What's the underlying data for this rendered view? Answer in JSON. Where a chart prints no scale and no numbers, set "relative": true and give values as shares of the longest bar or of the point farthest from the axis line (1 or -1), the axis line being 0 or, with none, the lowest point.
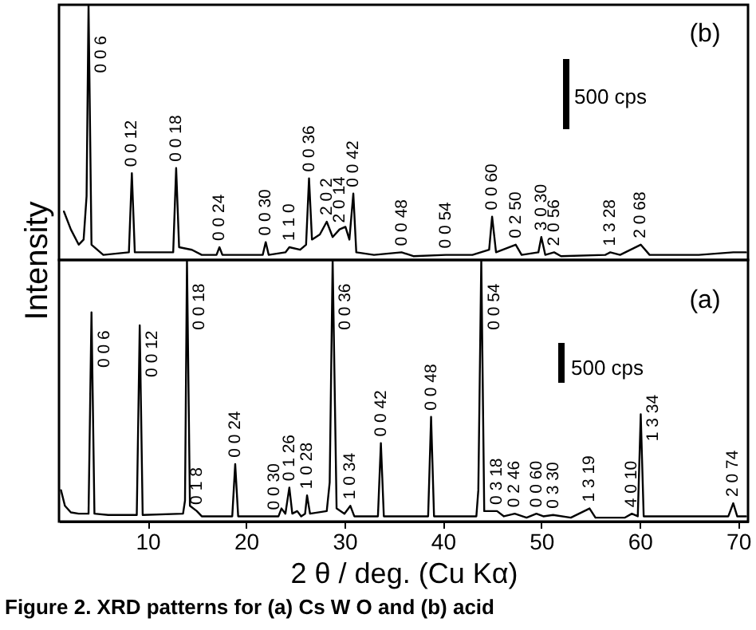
{
  "chart_data": [
    {
      "type": "line",
      "relative": true,
      "ylabel": "Intensity",
      "xlim": [
        1,
        71
      ],
      "tick_labels": false,
      "x": [
        1.5,
        2.2,
        3.0,
        3.5,
        3.8,
        4.0,
        4.3,
        5.5,
        8.1,
        8.4,
        8.7,
        12.6,
        12.9,
        13.2,
        14.5,
        15.5,
        17.0,
        17.3,
        17.6,
        21.7,
        22.0,
        22.3,
        24.0,
        24.4,
        25.5,
        26.1,
        26.4,
        26.7,
        27.5,
        28.2,
        28.8,
        29.5,
        30.1,
        30.5,
        30.9,
        31.2,
        33,
        35.8,
        37,
        40.3,
        43,
        44.7,
        45.0,
        45.4,
        47.4,
        48,
        49.7,
        50.0,
        50.4,
        51.3,
        52,
        56.5,
        57.0,
        58,
        60.1,
        61,
        66,
        69.5,
        70.8
      ],
      "series": [
        {
          "color": "#000000",
          "values": [
            0.19,
            0.12,
            0.06,
            0.08,
            0.25,
            1.0,
            0.06,
            0.02,
            0.03,
            0.34,
            0.03,
            0.03,
            0.36,
            0.05,
            0.04,
            0.02,
            0.02,
            0.05,
            0.02,
            0.02,
            0.07,
            0.02,
            0.03,
            0.05,
            0.04,
            0.06,
            0.32,
            0.08,
            0.1,
            0.15,
            0.09,
            0.12,
            0.13,
            0.08,
            0.26,
            0.03,
            0.02,
            0.03,
            0.015,
            0.02,
            0.02,
            0.04,
            0.17,
            0.03,
            0.06,
            0.02,
            0.03,
            0.09,
            0.02,
            0.03,
            0.015,
            0.02,
            0.03,
            0.02,
            0.06,
            0.02,
            0.02,
            0.03,
            0.03
          ]
        }
      ],
      "annotations": [
        "(b)",
        "500 cps",
        {
          "text": "0 0 6",
          "x": 4.0,
          "y": 1.0
        },
        {
          "text": "0 0 12",
          "x": 8.4,
          "y": 0.34
        },
        {
          "text": "0 0 18",
          "x": 12.9,
          "y": 0.36
        },
        {
          "text": "0 0 24",
          "x": 17.3,
          "y": 0.05
        },
        {
          "text": "0 0 30",
          "x": 22.0,
          "y": 0.07
        },
        {
          "text": "1 1 0",
          "x": 24.4,
          "y": 0.05
        },
        {
          "text": "0 0 36",
          "x": 26.4,
          "y": 0.32
        },
        {
          "text": "2 0 2",
          "x": 28.2,
          "y": 0.15
        },
        {
          "text": "2 0 14",
          "x": 29.5,
          "y": 0.12
        },
        {
          "text": "0 0 42",
          "x": 30.9,
          "y": 0.26
        },
        {
          "text": "0 0 48",
          "x": 35.8,
          "y": 0.03
        },
        {
          "text": "0 0 54",
          "x": 40.3,
          "y": 0.02
        },
        {
          "text": "0 0 60",
          "x": 45.0,
          "y": 0.17
        },
        {
          "text": "0 2 50",
          "x": 47.4,
          "y": 0.06
        },
        {
          "text": "3 0 30",
          "x": 50.0,
          "y": 0.09
        },
        {
          "text": "2 0 56",
          "x": 51.3,
          "y": 0.03
        },
        {
          "text": "1 3 28",
          "x": 57.0,
          "y": 0.03
        },
        {
          "text": "2 0 68",
          "x": 60.1,
          "y": 0.06
        }
      ]
    },
    {
      "type": "line",
      "relative": true,
      "xlabel": "2 θ / deg. (Cu Kα)",
      "xlim": [
        1,
        71
      ],
      "xticks": [
        10,
        20,
        30,
        40,
        50,
        60,
        70
      ],
      "tick_labels": "x",
      "x": [
        1.2,
        1.6,
        2.2,
        3,
        4.0,
        4.3,
        4.6,
        6,
        8.9,
        9.2,
        9.5,
        13.6,
        13.8,
        14.0,
        14.3,
        15.0,
        15.5,
        18.6,
        18.9,
        19.2,
        22.9,
        23.3,
        23.6,
        24.0,
        24.4,
        24.7,
        25.2,
        25.6,
        26.0,
        26.2,
        26.5,
        28.2,
        28.5,
        28.8,
        29.2,
        30.0,
        30.6,
        31.0,
        33.4,
        33.7,
        34.0,
        38.5,
        38.8,
        39.1,
        43.4,
        43.6,
        43.9,
        44.2,
        45.5,
        46.2,
        47.3,
        48.5,
        49.5,
        50.2,
        51.2,
        53,
        54.9,
        55.5,
        58.5,
        59.2,
        59.8,
        60.1,
        60.4,
        65.7,
        69.0,
        69.5,
        69.9,
        70.8
      ],
      "series": [
        {
          "color": "#000000",
          "values": [
            0.12,
            0.06,
            0.035,
            0.03,
            0.03,
            0.8,
            0.03,
            0.025,
            0.025,
            0.75,
            0.025,
            0.03,
            0.08,
            1.0,
            0.06,
            0.04,
            0.02,
            0.02,
            0.22,
            0.02,
            0.02,
            0.02,
            0.05,
            0.03,
            0.13,
            0.03,
            0.04,
            0.02,
            0.03,
            0.1,
            0.03,
            0.04,
            0.15,
            1.0,
            0.05,
            0.03,
            0.06,
            0.02,
            0.02,
            0.3,
            0.02,
            0.02,
            0.4,
            0.02,
            0.02,
            0.12,
            1.0,
            0.04,
            0.04,
            0.02,
            0.03,
            0.015,
            0.03,
            0.02,
            0.025,
            0.015,
            0.05,
            0.015,
            0.015,
            0.03,
            0.02,
            0.41,
            0.02,
            0.02,
            0.02,
            0.07,
            0.02,
            0.02
          ]
        }
      ],
      "annotations": [
        "(a)",
        "500 cps",
        "Figure 2. XRD patterns for (a) Cs W O and (b) acid",
        {
          "text": "0 0 6",
          "x": 4.3,
          "y": 0.8
        },
        {
          "text": "0 0 12",
          "x": 9.2,
          "y": 0.75
        },
        {
          "text": "0 0 18",
          "x": 14.0,
          "y": 1.0
        },
        {
          "text": "0 1 8",
          "x": 15.0,
          "y": 0.04
        },
        {
          "text": "0 0 24",
          "x": 18.9,
          "y": 0.22
        },
        {
          "text": "0 0 30",
          "x": 22.9,
          "y": 0.02
        },
        {
          "text": "0 1 26",
          "x": 24.4,
          "y": 0.13
        },
        {
          "text": "1 0 28",
          "x": 26.2,
          "y": 0.1
        },
        {
          "text": "0 0 36",
          "x": 28.8,
          "y": 1.0
        },
        {
          "text": "1 0 34",
          "x": 30.6,
          "y": 0.06
        },
        {
          "text": "0 0 42",
          "x": 33.7,
          "y": 0.3
        },
        {
          "text": "0 0 48",
          "x": 38.8,
          "y": 0.4
        },
        {
          "text": "0 0 54",
          "x": 43.9,
          "y": 1.0
        },
        {
          "text": "0 3 18",
          "x": 45.5,
          "y": 0.04
        },
        {
          "text": "0 2 46",
          "x": 47.3,
          "y": 0.03
        },
        {
          "text": "0 0 60",
          "x": 49.5,
          "y": 0.03
        },
        {
          "text": "0 3 30",
          "x": 51.2,
          "y": 0.025
        },
        {
          "text": "1 3 19",
          "x": 54.9,
          "y": 0.05
        },
        {
          "text": "4 0 10",
          "x": 59.2,
          "y": 0.03
        },
        {
          "text": "1 3 34",
          "x": 60.1,
          "y": 0.41
        },
        {
          "text": "2 0 74",
          "x": 69.5,
          "y": 0.07
        }
      ]
    }
  ]
}
